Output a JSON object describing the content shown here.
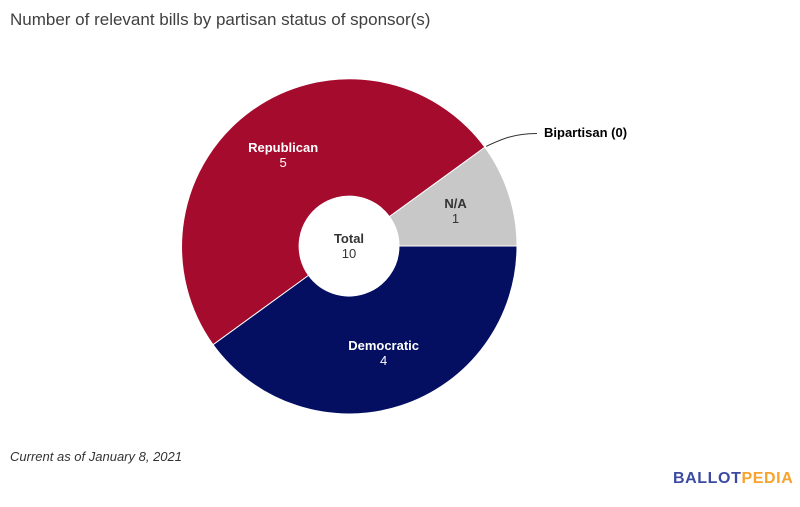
{
  "title": "Number of relevant bills by partisan status of sponsor(s)",
  "footer": {
    "note": "Current as of January 8, 2021"
  },
  "logo": {
    "part1": "BALLOT",
    "part2": "PEDIA",
    "color1": "#3b4ba2",
    "color2": "#f8a22c"
  },
  "chart_data": {
    "type": "pie",
    "subtype": "donut",
    "title": "Number of relevant bills by partisan status of sponsor(s)",
    "total_label": "Total",
    "total_value": 10,
    "start_angle_deg_clockwise_from_top": 234,
    "legend": "none",
    "slices": [
      {
        "label": "Republican",
        "value": 5,
        "color": "#a50b2c",
        "text": "on-dark"
      },
      {
        "label": "Bipartisan",
        "value": 0,
        "color": "#c8c8c8",
        "callout": "Bipartisan (0)"
      },
      {
        "label": "N/A",
        "value": 1,
        "color": "#c8c8c8",
        "text": "on-light"
      },
      {
        "label": "Democratic",
        "value": 4,
        "color": "#040f62",
        "text": "on-dark"
      }
    ]
  }
}
